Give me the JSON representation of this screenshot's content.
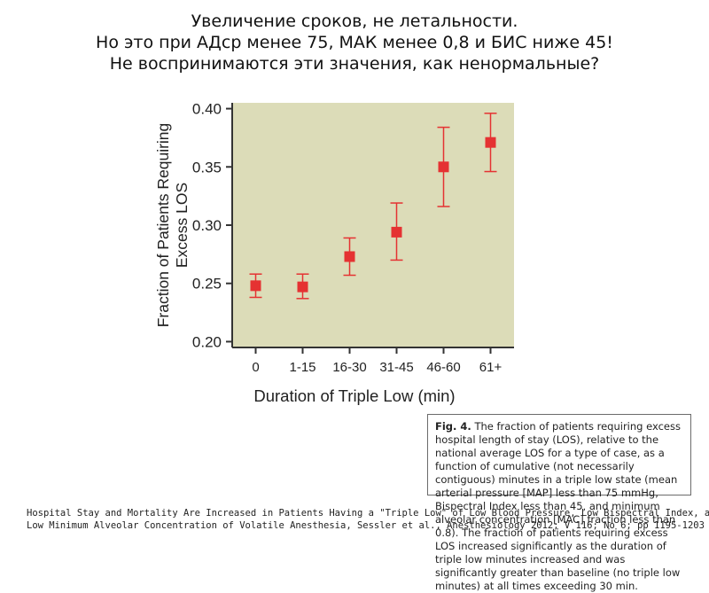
{
  "slide": {
    "title_lines": [
      "Увеличение сроков, не летальности.",
      "Но это при АДср менее 75, МАК менее 0,8 и БИС ниже 45!",
      "Не воспринимаются эти значения, как ненормальные?"
    ],
    "caption": {
      "label": "Fig. 4.",
      "text": "The fraction of patients requiring excess hospital length of stay (LOS), relative to the national average LOS for a type of case, as a function of cumulative (not necessarily contiguous) minutes in a triple low state (mean arterial pressure [MAP] less than 75 mmHg, Bispectral Index less than 45, and minimum alveolar concentration [MAC] fraction less than 0.8). The fraction of patients requiring excess LOS increased significantly as the duration of triple low minutes increased and was significantly greater than baseline (no triple low minutes) at all times exceeding 30 min."
    },
    "citation_lines": [
      "Hospital Stay and Mortality Are Increased in Patients Having a \"Triple Low\" of Low Blood Pressure, Low Bispectral Index, and",
      "Low Minimum Alveolar Concentration of Volatile Anesthesia, Sessler et al., Anesthesiology 2012; V 116; No 6; pp 1195-1203"
    ]
  },
  "chart_data": {
    "type": "scatter",
    "title": "",
    "xlabel": "Duration of Triple Low (min)",
    "ylabel_lines": [
      "Fraction of Patients Requiring",
      "Excess LOS"
    ],
    "categories": [
      "0",
      "1-15",
      "16-30",
      "31-45",
      "46-60",
      "61+"
    ],
    "values": [
      0.248,
      0.247,
      0.273,
      0.294,
      0.35,
      0.371
    ],
    "error_low": [
      0.238,
      0.237,
      0.257,
      0.27,
      0.316,
      0.346
    ],
    "error_high": [
      0.258,
      0.258,
      0.289,
      0.319,
      0.384,
      0.396
    ],
    "ylim": [
      0.195,
      0.405
    ],
    "yticks": [
      0.2,
      0.25,
      0.3,
      0.35,
      0.4
    ],
    "ytick_labels": [
      "0.20",
      "0.25",
      "0.30",
      "0.35",
      "0.40"
    ],
    "colors": {
      "plot_bg": "#dcdcb8",
      "marker": "#e53232",
      "axis": "#333333"
    }
  }
}
